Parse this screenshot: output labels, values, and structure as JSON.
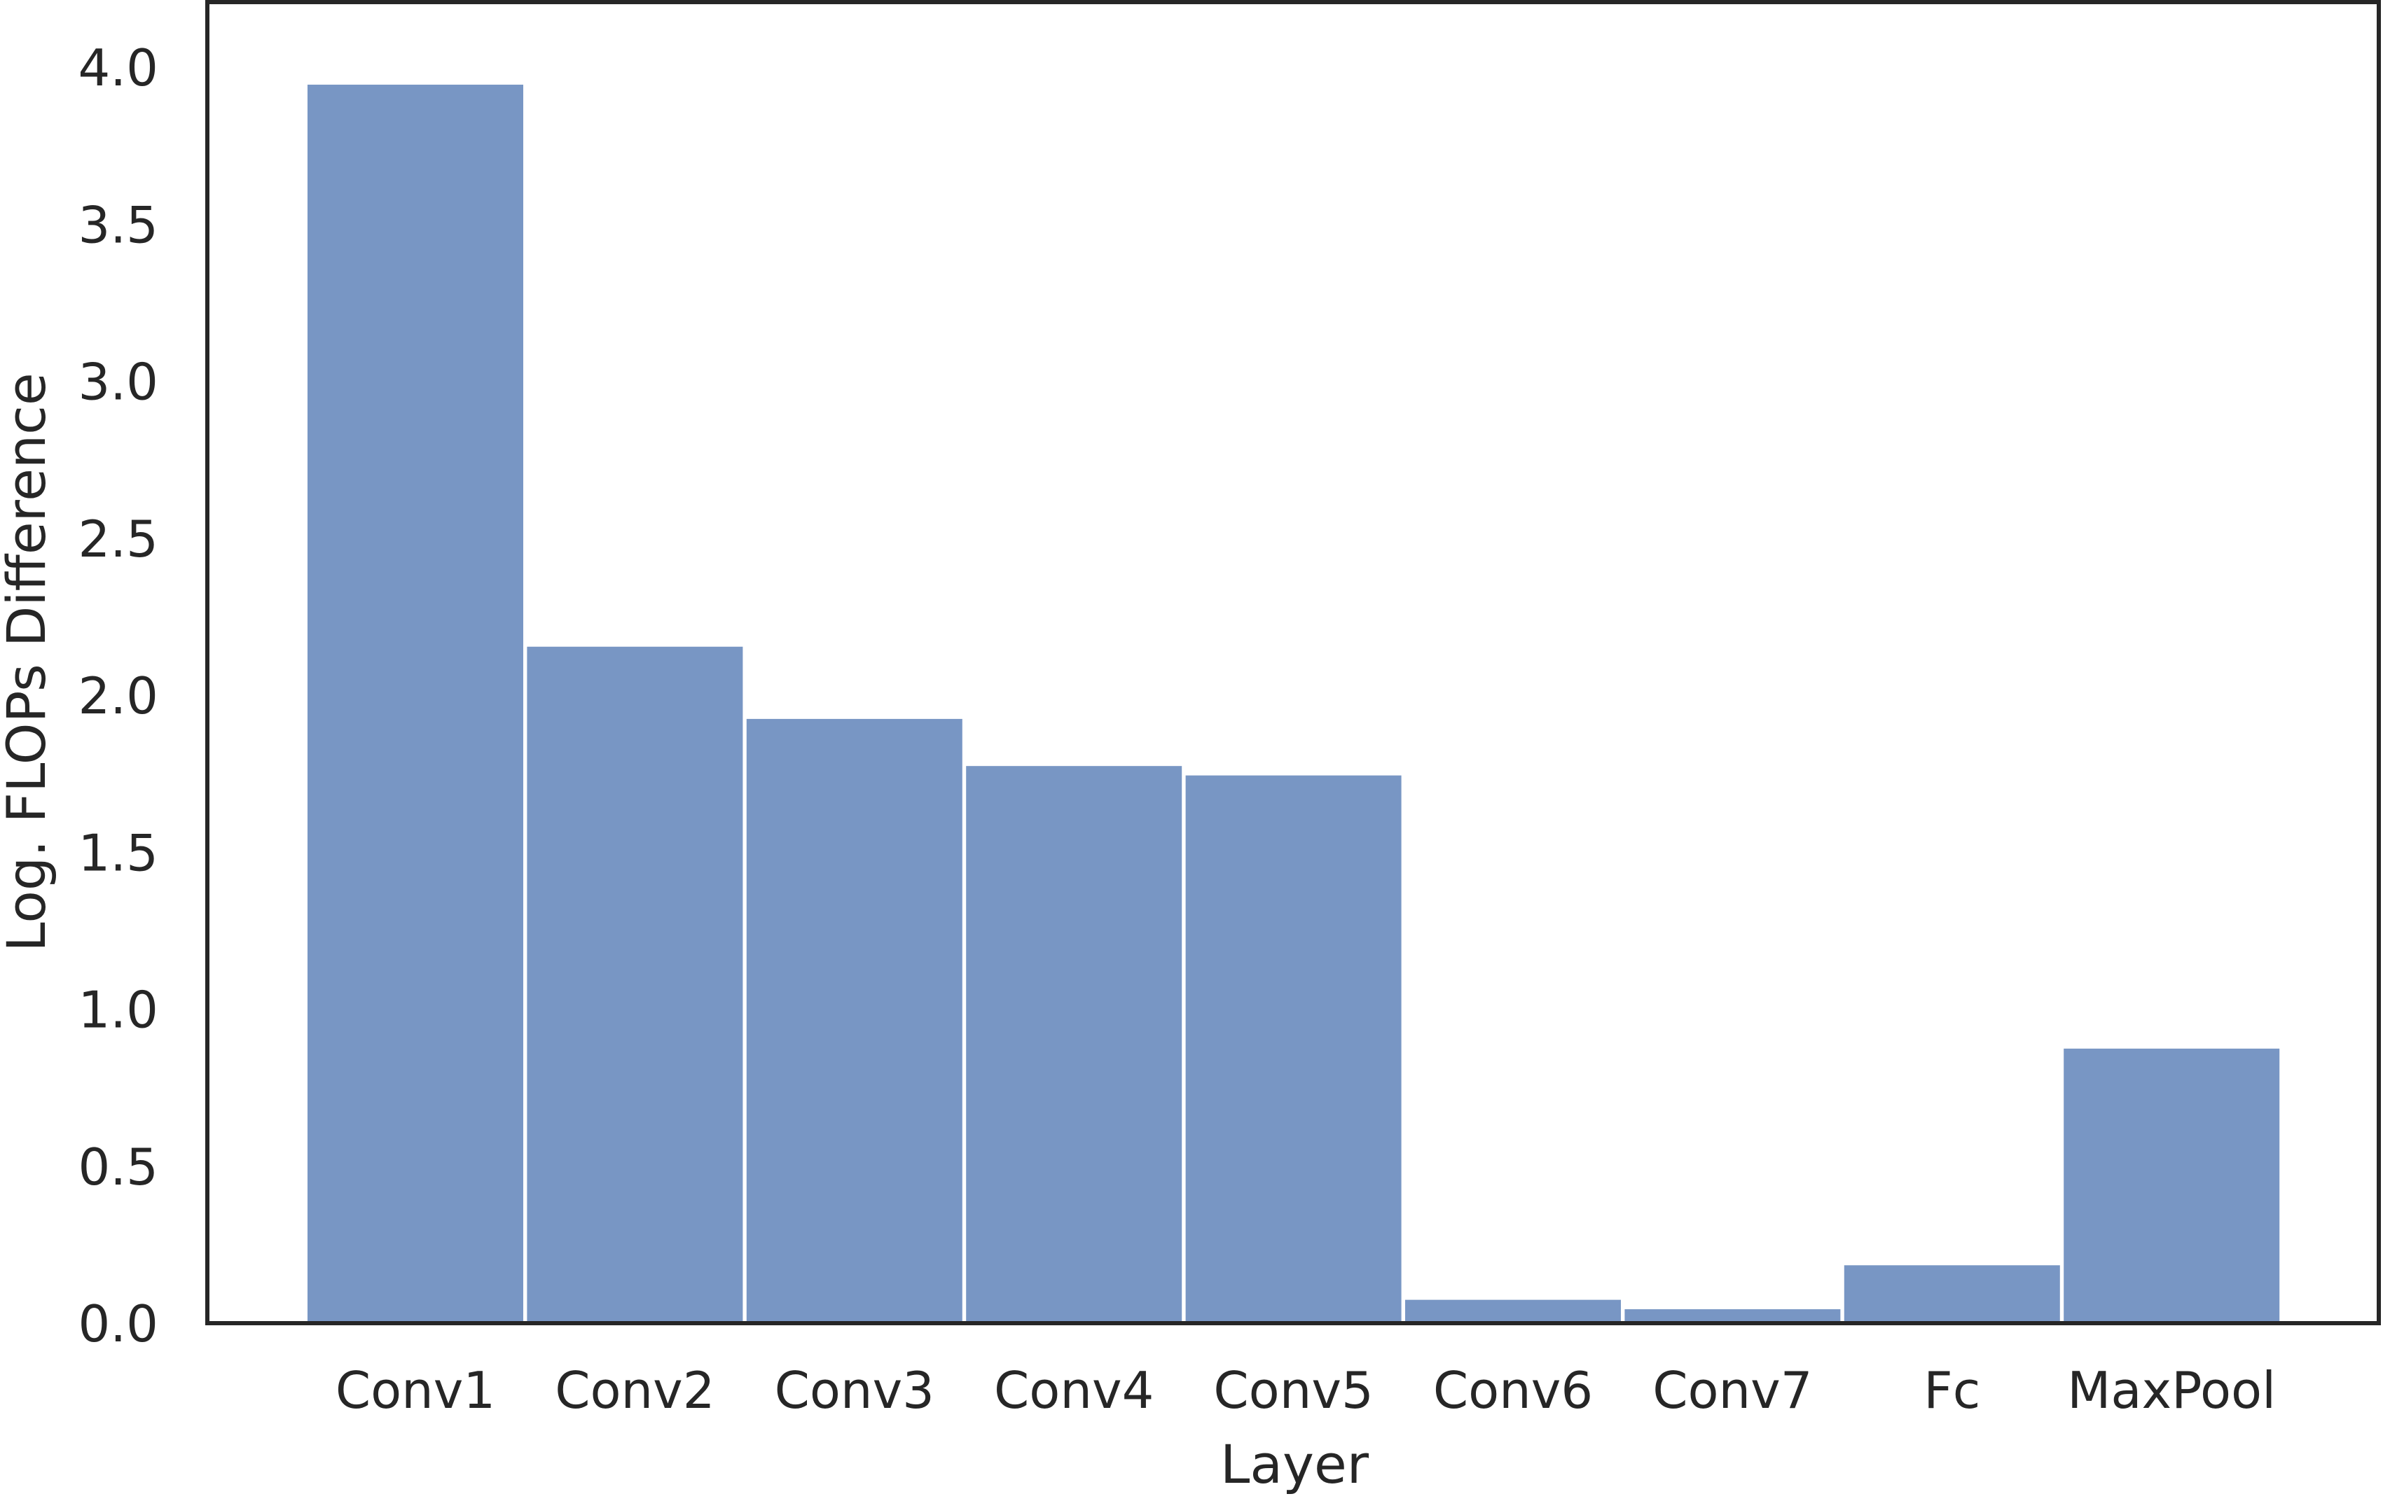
{
  "chart_data": {
    "type": "bar",
    "title": "",
    "xlabel": "Layer",
    "ylabel": "Log. FLOPs Difference",
    "categories": [
      "Conv1",
      "Conv2",
      "Conv3",
      "Conv4",
      "Conv5",
      "Conv6",
      "Conv7",
      "Fc",
      "MaxPool"
    ],
    "values": [
      3.95,
      2.16,
      1.93,
      1.78,
      1.75,
      0.08,
      0.05,
      0.19,
      0.88
    ],
    "ylim": [
      0,
      4.0
    ],
    "yticks": [
      "0.0",
      "0.5",
      "1.0",
      "1.5",
      "2.0",
      "2.5",
      "3.0",
      "3.5",
      "4.0"
    ],
    "grid": false,
    "legend": "none",
    "colors": {
      "bar": "#7896c4",
      "bar_edge": "#ffffff",
      "axes": "#262626",
      "text": "#262626"
    }
  }
}
